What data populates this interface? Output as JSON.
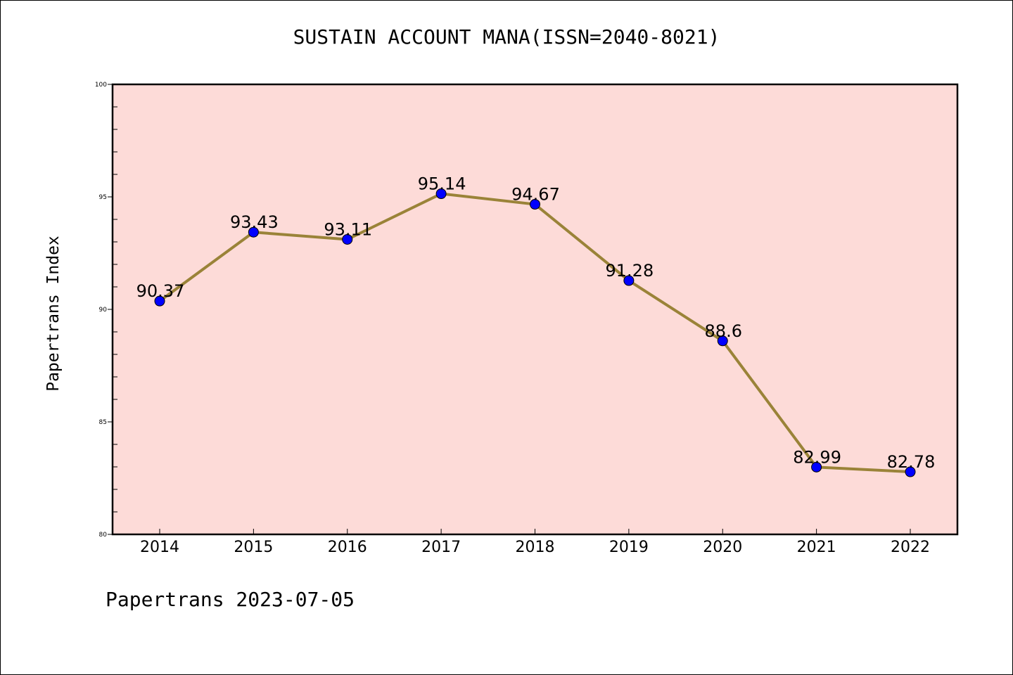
{
  "chart_data": {
    "type": "line",
    "title": "SUSTAIN ACCOUNT MANA(ISSN=2040-8021)",
    "xlabel": "",
    "ylabel": "Papertrans Index",
    "categories": [
      "2014",
      "2015",
      "2016",
      "2017",
      "2018",
      "2019",
      "2020",
      "2021",
      "2022"
    ],
    "series": [
      {
        "values": [
          90.37,
          93.43,
          93.11,
          95.14,
          94.67,
          91.28,
          88.6,
          82.99,
          82.78
        ],
        "data_labels": [
          "90.37",
          "93.43",
          "93.11",
          "95.14",
          "94.67",
          "91.28",
          "88.6",
          "82.99",
          "82.78"
        ]
      }
    ],
    "ylim": [
      80,
      100
    ],
    "yticks": [
      "80",
      "85",
      "90",
      "95",
      "100"
    ],
    "grid": false,
    "legend": "none",
    "colors": {
      "plot_background": "#fddbd8",
      "line": "#9a8338",
      "marker": "#0000ff"
    }
  },
  "footer": {
    "note": "Papertrans 2023-07-05"
  }
}
